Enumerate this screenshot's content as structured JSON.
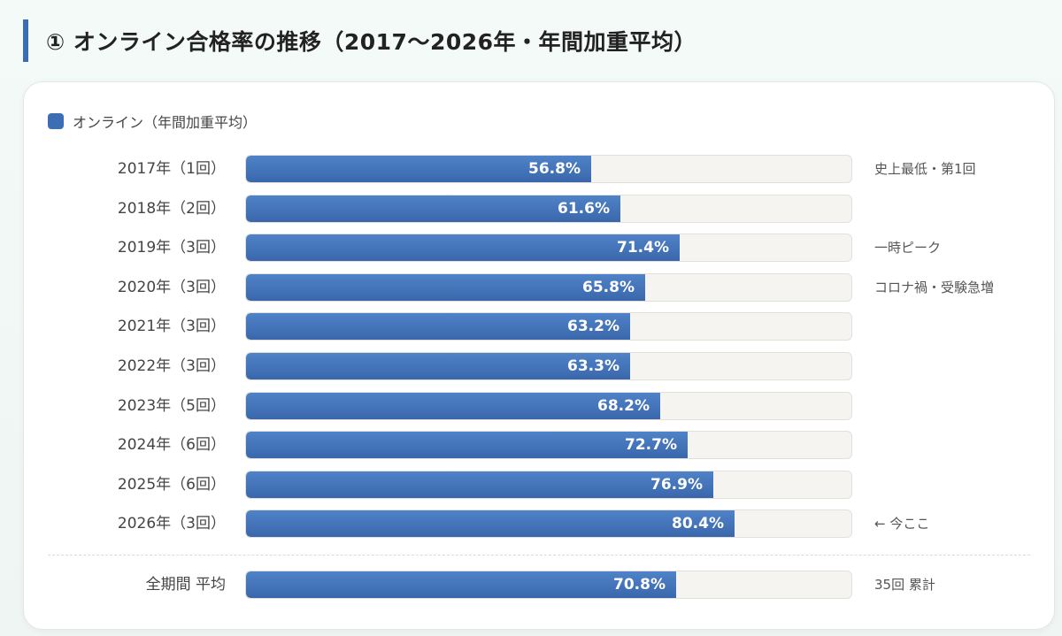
{
  "title": "① オンライン合格率の推移（2017〜2026年・年間加重平均）",
  "legend": {
    "label": "オンライン（年間加重平均）",
    "color": "#3d6db2"
  },
  "chart_data": {
    "type": "bar",
    "orientation": "horizontal",
    "xlim": [
      0,
      100
    ],
    "categories": [
      "2017年（1回）",
      "2018年（2回）",
      "2019年（3回）",
      "2020年（3回）",
      "2021年（3回）",
      "2022年（3回）",
      "2023年（5回）",
      "2024年（6回）",
      "2025年（6回）",
      "2026年（3回）"
    ],
    "series": [
      {
        "name": "オンライン（年間加重平均）",
        "values": [
          56.8,
          61.6,
          71.4,
          65.8,
          63.2,
          63.3,
          68.2,
          72.7,
          76.9,
          80.4
        ]
      }
    ],
    "value_labels": [
      "56.8%",
      "61.6%",
      "71.4%",
      "65.8%",
      "63.2%",
      "63.3%",
      "68.2%",
      "72.7%",
      "76.9%",
      "80.4%"
    ],
    "annotations": [
      "史上最低・第1回",
      "",
      "一時ピーク",
      "コロナ禍・受験急増",
      "",
      "",
      "",
      "",
      "",
      "← 今ここ"
    ],
    "summary": {
      "label": "全期間 平均",
      "value": 70.8,
      "value_label": "70.8%",
      "note": "35回 累計"
    }
  }
}
